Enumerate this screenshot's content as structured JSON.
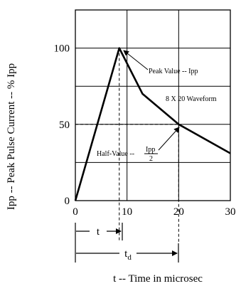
{
  "chart_data": {
    "type": "line",
    "title": "",
    "xlabel": "t -- Time in microsec",
    "ylabel": "Ipp -- Peak Pulse Current -- % Ipp",
    "xlim": [
      0,
      30
    ],
    "ylim": [
      0,
      125
    ],
    "xticks": [
      "0",
      "10",
      "20",
      "30"
    ],
    "yticks": [
      "0",
      "50",
      "100"
    ],
    "grid": true,
    "series": [
      {
        "x": [
          0,
          8.5,
          13,
          20,
          30
        ],
        "y": [
          0,
          100,
          70,
          50,
          31
        ]
      }
    ],
    "annotations": {
      "peak": "Peak Value -- Ipp",
      "waveform": "8 X 20 Waveform",
      "half_value_prefix": "Half-Value --",
      "half_value_num": "Ipp",
      "half_value_den": "2"
    },
    "dimensions": {
      "t_label": "t",
      "td_label": "t",
      "td_sub": "d"
    }
  }
}
